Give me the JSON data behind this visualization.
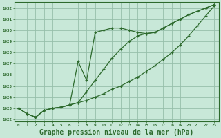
{
  "title": "Graphe pression niveau de la mer (hPa)",
  "hours": [
    0,
    1,
    2,
    3,
    4,
    5,
    6,
    7,
    8,
    9,
    10,
    11,
    12,
    13,
    14,
    15,
    16,
    17,
    18,
    19,
    20,
    21,
    22,
    23
  ],
  "line1_smooth": [
    1023.0,
    1022.5,
    1022.2,
    1022.8,
    1023.0,
    1023.1,
    1023.3,
    1023.5,
    1023.7,
    1024.0,
    1024.3,
    1024.7,
    1025.0,
    1025.4,
    1025.8,
    1026.3,
    1026.8,
    1027.4,
    1028.0,
    1028.7,
    1029.5,
    1030.4,
    1031.3,
    1032.2
  ],
  "line2_peaked": [
    1023.0,
    1022.5,
    1022.2,
    1022.8,
    1023.0,
    1023.1,
    1023.3,
    1027.2,
    1025.5,
    1029.8,
    1030.0,
    1030.2,
    1030.2,
    1030.0,
    1029.8,
    1029.7,
    1029.8,
    1030.2,
    1030.6,
    1031.0,
    1031.4,
    1031.7,
    1032.0,
    1032.3
  ],
  "line3_curved": [
    1023.0,
    1022.5,
    1022.2,
    1022.8,
    1023.0,
    1023.1,
    1023.3,
    1023.5,
    1024.5,
    1025.5,
    1026.5,
    1027.5,
    1028.3,
    1029.0,
    1029.5,
    1029.7,
    1029.8,
    1030.2,
    1030.6,
    1031.0,
    1031.4,
    1031.7,
    1032.0,
    1032.3
  ],
  "yticks": [
    1022,
    1023,
    1024,
    1025,
    1026,
    1027,
    1028,
    1029,
    1030,
    1031,
    1032
  ],
  "line_color": "#2d6a2d",
  "bg_color": "#c8e8d8",
  "grid_color": "#96bfaa",
  "title_fontsize": 7.0
}
